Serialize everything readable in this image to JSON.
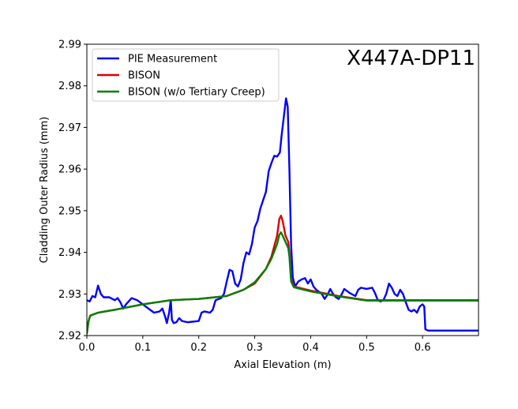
{
  "chart_data": {
    "type": "line",
    "xlabel": "Axial Elevation (m)",
    "ylabel": "Cladding Outer Radius (mm)",
    "annotation": "X447A-DP11",
    "xlim": [
      0.0,
      0.7
    ],
    "ylim": [
      2.92,
      2.99
    ],
    "xticks": [
      "0.0",
      "0.1",
      "0.2",
      "0.3",
      "0.4",
      "0.5",
      "0.6"
    ],
    "yticks": [
      "2.92",
      "2.93",
      "2.94",
      "2.95",
      "2.96",
      "2.97",
      "2.98",
      "2.99"
    ],
    "grid": false,
    "legend_position": "top-left",
    "series": [
      {
        "name": "PIE Measurement",
        "color": "#0000ff",
        "points": [
          [
            0.0,
            2.9285
          ],
          [
            0.005,
            2.9282
          ],
          [
            0.01,
            2.9295
          ],
          [
            0.015,
            2.9292
          ],
          [
            0.02,
            2.932
          ],
          [
            0.025,
            2.93
          ],
          [
            0.03,
            2.9292
          ],
          [
            0.04,
            2.9292
          ],
          [
            0.05,
            2.9285
          ],
          [
            0.055,
            2.929
          ],
          [
            0.06,
            2.928
          ],
          [
            0.065,
            2.9265
          ],
          [
            0.07,
            2.9275
          ],
          [
            0.08,
            2.929
          ],
          [
            0.09,
            2.9285
          ],
          [
            0.1,
            2.9275
          ],
          [
            0.11,
            2.9265
          ],
          [
            0.12,
            2.9255
          ],
          [
            0.13,
            2.9258
          ],
          [
            0.135,
            2.9265
          ],
          [
            0.14,
            2.9245
          ],
          [
            0.143,
            2.923
          ],
          [
            0.147,
            2.9255
          ],
          [
            0.15,
            2.9285
          ],
          [
            0.152,
            2.9238
          ],
          [
            0.155,
            2.923
          ],
          [
            0.16,
            2.9232
          ],
          [
            0.165,
            2.9242
          ],
          [
            0.17,
            2.9235
          ],
          [
            0.18,
            2.9232
          ],
          [
            0.2,
            2.9235
          ],
          [
            0.205,
            2.9255
          ],
          [
            0.21,
            2.9258
          ],
          [
            0.22,
            2.9255
          ],
          [
            0.225,
            2.9262
          ],
          [
            0.23,
            2.9285
          ],
          [
            0.24,
            2.929
          ],
          [
            0.245,
            2.93
          ],
          [
            0.25,
            2.933
          ],
          [
            0.255,
            2.9358
          ],
          [
            0.26,
            2.9355
          ],
          [
            0.265,
            2.9325
          ],
          [
            0.27,
            2.9318
          ],
          [
            0.275,
            2.9335
          ],
          [
            0.28,
            2.9375
          ],
          [
            0.285,
            2.94
          ],
          [
            0.29,
            2.9395
          ],
          [
            0.295,
            2.942
          ],
          [
            0.3,
            2.946
          ],
          [
            0.305,
            2.9475
          ],
          [
            0.31,
            2.9505
          ],
          [
            0.315,
            2.9525
          ],
          [
            0.32,
            2.9545
          ],
          [
            0.325,
            2.9595
          ],
          [
            0.33,
            2.9615
          ],
          [
            0.335,
            2.9632
          ],
          [
            0.34,
            2.963
          ],
          [
            0.345,
            2.964
          ],
          [
            0.348,
            2.968
          ],
          [
            0.352,
            2.9725
          ],
          [
            0.356,
            2.977
          ],
          [
            0.359,
            2.975
          ],
          [
            0.362,
            2.96
          ],
          [
            0.365,
            2.942
          ],
          [
            0.368,
            2.934
          ],
          [
            0.372,
            2.9318
          ],
          [
            0.378,
            2.933
          ],
          [
            0.384,
            2.9335
          ],
          [
            0.39,
            2.9338
          ],
          [
            0.395,
            2.9325
          ],
          [
            0.4,
            2.9335
          ],
          [
            0.405,
            2.9318
          ],
          [
            0.41,
            2.931
          ],
          [
            0.415,
            2.9305
          ],
          [
            0.42,
            2.93
          ],
          [
            0.425,
            2.9288
          ],
          [
            0.43,
            2.9298
          ],
          [
            0.435,
            2.9312
          ],
          [
            0.44,
            2.93
          ],
          [
            0.445,
            2.9292
          ],
          [
            0.45,
            2.9288
          ],
          [
            0.455,
            2.9298
          ],
          [
            0.46,
            2.9312
          ],
          [
            0.47,
            2.9302
          ],
          [
            0.48,
            2.9295
          ],
          [
            0.485,
            2.931
          ],
          [
            0.49,
            2.9315
          ],
          [
            0.5,
            2.9312
          ],
          [
            0.51,
            2.9315
          ],
          [
            0.515,
            2.9302
          ],
          [
            0.52,
            2.9285
          ],
          [
            0.525,
            2.9282
          ],
          [
            0.53,
            2.9285
          ],
          [
            0.535,
            2.93
          ],
          [
            0.54,
            2.9325
          ],
          [
            0.545,
            2.9315
          ],
          [
            0.55,
            2.93
          ],
          [
            0.555,
            2.9295
          ],
          [
            0.56,
            2.931
          ],
          [
            0.565,
            2.93
          ],
          [
            0.57,
            2.928
          ],
          [
            0.575,
            2.9262
          ],
          [
            0.58,
            2.9258
          ],
          [
            0.585,
            2.9262
          ],
          [
            0.59,
            2.9255
          ],
          [
            0.595,
            2.927
          ],
          [
            0.6,
            2.9275
          ],
          [
            0.603,
            2.927
          ],
          [
            0.605,
            2.9215
          ],
          [
            0.61,
            2.9212
          ],
          [
            0.65,
            2.9212
          ],
          [
            0.7,
            2.9212
          ]
        ]
      },
      {
        "name": "BISON",
        "color": "#dd0000",
        "points": [
          [
            0.0,
            2.9205
          ],
          [
            0.003,
            2.9235
          ],
          [
            0.006,
            2.9248
          ],
          [
            0.01,
            2.925
          ],
          [
            0.02,
            2.9255
          ],
          [
            0.05,
            2.9262
          ],
          [
            0.1,
            2.9275
          ],
          [
            0.15,
            2.9285
          ],
          [
            0.2,
            2.9288
          ],
          [
            0.25,
            2.9295
          ],
          [
            0.28,
            2.931
          ],
          [
            0.3,
            2.9325
          ],
          [
            0.32,
            2.936
          ],
          [
            0.33,
            2.939
          ],
          [
            0.34,
            2.944
          ],
          [
            0.344,
            2.948
          ],
          [
            0.347,
            2.9488
          ],
          [
            0.35,
            2.9475
          ],
          [
            0.355,
            2.944
          ],
          [
            0.36,
            2.9425
          ],
          [
            0.362,
            2.94
          ],
          [
            0.365,
            2.9335
          ],
          [
            0.37,
            2.9318
          ],
          [
            0.4,
            2.9308
          ],
          [
            0.45,
            2.9295
          ],
          [
            0.5,
            2.9285
          ],
          [
            0.6,
            2.9285
          ],
          [
            0.7,
            2.9285
          ]
        ]
      },
      {
        "name": "BISON (w/o Tertiary Creep)",
        "color": "#008000",
        "points": [
          [
            0.0,
            2.9205
          ],
          [
            0.003,
            2.9235
          ],
          [
            0.006,
            2.9248
          ],
          [
            0.01,
            2.925
          ],
          [
            0.02,
            2.9255
          ],
          [
            0.05,
            2.9262
          ],
          [
            0.1,
            2.9275
          ],
          [
            0.15,
            2.9285
          ],
          [
            0.2,
            2.9288
          ],
          [
            0.25,
            2.9295
          ],
          [
            0.28,
            2.931
          ],
          [
            0.3,
            2.9328
          ],
          [
            0.32,
            2.936
          ],
          [
            0.33,
            2.9385
          ],
          [
            0.34,
            2.942
          ],
          [
            0.344,
            2.9442
          ],
          [
            0.347,
            2.9448
          ],
          [
            0.35,
            2.944
          ],
          [
            0.355,
            2.9425
          ],
          [
            0.36,
            2.941
          ],
          [
            0.362,
            2.939
          ],
          [
            0.365,
            2.933
          ],
          [
            0.37,
            2.9316
          ],
          [
            0.4,
            2.9306
          ],
          [
            0.45,
            2.9294
          ],
          [
            0.5,
            2.9284
          ],
          [
            0.6,
            2.9284
          ],
          [
            0.7,
            2.9284
          ]
        ]
      }
    ]
  }
}
